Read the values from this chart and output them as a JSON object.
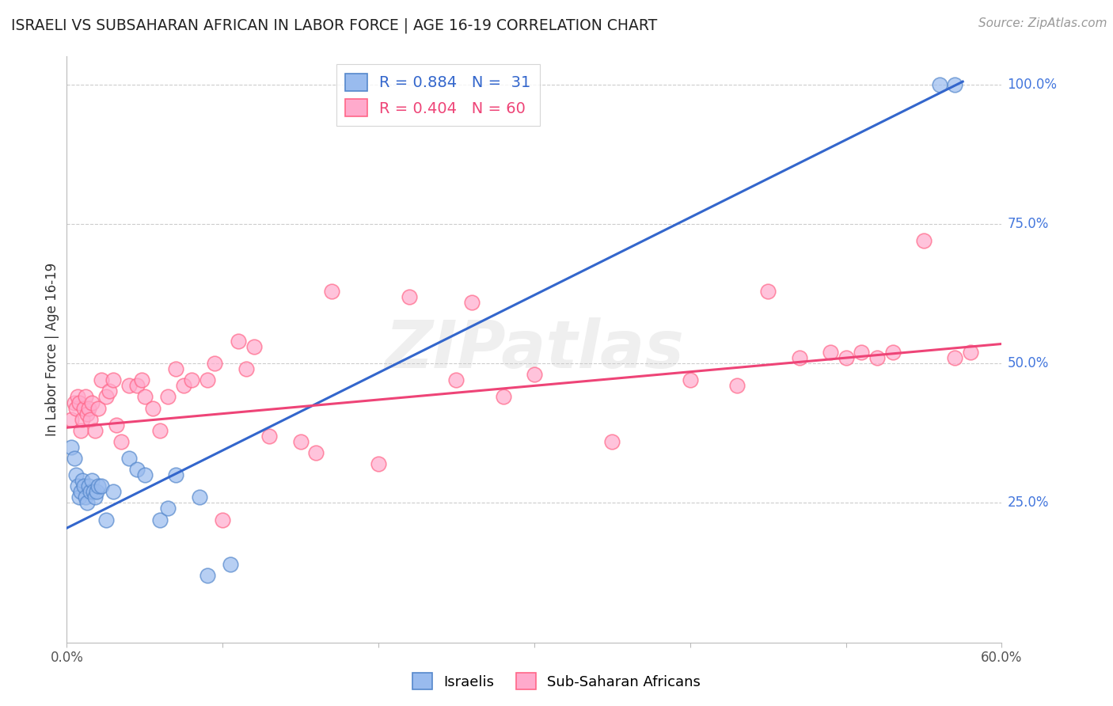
{
  "title": "ISRAELI VS SUBSAHARAN AFRICAN IN LABOR FORCE | AGE 16-19 CORRELATION CHART",
  "source": "Source: ZipAtlas.com",
  "ylabel": "In Labor Force | Age 16-19",
  "xmin": 0.0,
  "xmax": 0.6,
  "ymin": 0.0,
  "ymax": 1.05,
  "yticks": [
    0.25,
    0.5,
    0.75,
    1.0
  ],
  "ytick_labels": [
    "25.0%",
    "50.0%",
    "75.0%",
    "100.0%"
  ],
  "xticks": [
    0.0,
    0.1,
    0.2,
    0.3,
    0.4,
    0.5,
    0.6
  ],
  "xtick_labels": [
    "0.0%",
    "",
    "",
    "",
    "",
    "",
    "60.0%"
  ],
  "blue_scatter_color": "#99BBEE",
  "blue_edge_color": "#5588CC",
  "pink_scatter_color": "#FFAACC",
  "pink_edge_color": "#FF6688",
  "blue_line_color": "#3366CC",
  "pink_line_color": "#EE4477",
  "legend_R_blue": "R = 0.884",
  "legend_N_blue": "N =  31",
  "legend_R_pink": "R = 0.404",
  "legend_N_pink": "N = 60",
  "watermark": "ZIPatlas",
  "israelis_x": [
    0.003,
    0.005,
    0.006,
    0.007,
    0.008,
    0.009,
    0.01,
    0.011,
    0.012,
    0.013,
    0.014,
    0.015,
    0.016,
    0.017,
    0.018,
    0.019,
    0.02,
    0.022,
    0.025,
    0.03,
    0.04,
    0.045,
    0.05,
    0.06,
    0.065,
    0.07,
    0.085,
    0.09,
    0.105,
    0.56,
    0.57
  ],
  "israelis_y": [
    0.35,
    0.33,
    0.3,
    0.28,
    0.26,
    0.27,
    0.29,
    0.28,
    0.26,
    0.25,
    0.28,
    0.27,
    0.29,
    0.27,
    0.26,
    0.27,
    0.28,
    0.28,
    0.22,
    0.27,
    0.33,
    0.31,
    0.3,
    0.22,
    0.24,
    0.3,
    0.26,
    0.12,
    0.14,
    1.0,
    1.0
  ],
  "subsaharan_x": [
    0.003,
    0.005,
    0.006,
    0.007,
    0.008,
    0.009,
    0.01,
    0.011,
    0.012,
    0.013,
    0.014,
    0.015,
    0.016,
    0.018,
    0.02,
    0.022,
    0.025,
    0.027,
    0.03,
    0.032,
    0.035,
    0.04,
    0.045,
    0.048,
    0.05,
    0.055,
    0.06,
    0.065,
    0.07,
    0.075,
    0.08,
    0.09,
    0.095,
    0.1,
    0.11,
    0.115,
    0.12,
    0.13,
    0.15,
    0.16,
    0.17,
    0.2,
    0.22,
    0.25,
    0.26,
    0.28,
    0.3,
    0.35,
    0.4,
    0.43,
    0.45,
    0.47,
    0.49,
    0.5,
    0.51,
    0.52,
    0.53,
    0.55,
    0.57,
    0.58
  ],
  "subsaharan_y": [
    0.4,
    0.43,
    0.42,
    0.44,
    0.43,
    0.38,
    0.4,
    0.42,
    0.44,
    0.41,
    0.42,
    0.4,
    0.43,
    0.38,
    0.42,
    0.47,
    0.44,
    0.45,
    0.47,
    0.39,
    0.36,
    0.46,
    0.46,
    0.47,
    0.44,
    0.42,
    0.38,
    0.44,
    0.49,
    0.46,
    0.47,
    0.47,
    0.5,
    0.22,
    0.54,
    0.49,
    0.53,
    0.37,
    0.36,
    0.34,
    0.63,
    0.32,
    0.62,
    0.47,
    0.61,
    0.44,
    0.48,
    0.36,
    0.47,
    0.46,
    0.63,
    0.51,
    0.52,
    0.51,
    0.52,
    0.51,
    0.52,
    0.72,
    0.51,
    0.52
  ],
  "blue_trend_x0": 0.0,
  "blue_trend_y0": 0.205,
  "blue_trend_x1": 0.575,
  "blue_trend_y1": 1.005,
  "pink_trend_x0": 0.0,
  "pink_trend_y0": 0.385,
  "pink_trend_x1": 0.6,
  "pink_trend_y1": 0.535
}
